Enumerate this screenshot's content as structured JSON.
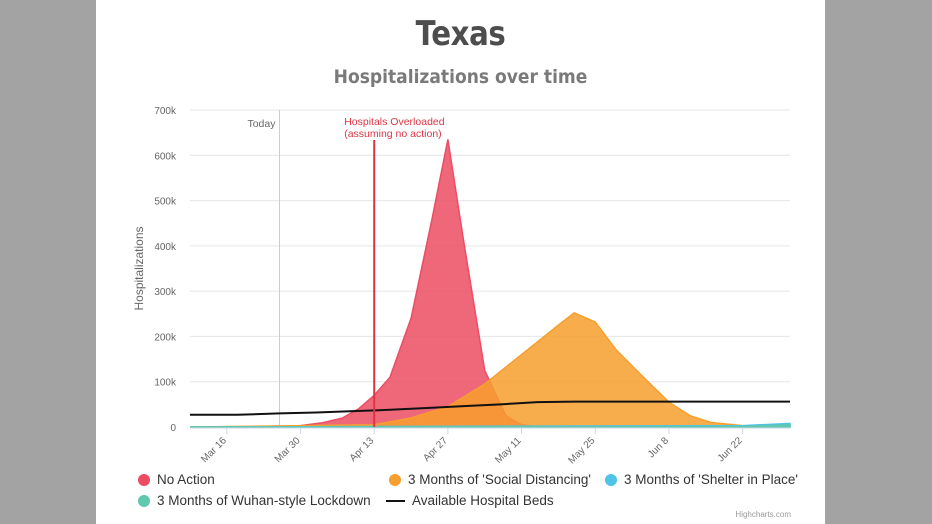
{
  "chart_data": {
    "type": "area",
    "title": "Texas",
    "subtitle": "Hospitalizations over time",
    "ylabel": "Hospitalizations",
    "ylim": [
      0,
      700000
    ],
    "yticks": [
      0,
      100000,
      200000,
      300000,
      400000,
      500000,
      600000,
      700000
    ],
    "ytick_labels": [
      "0",
      "100k",
      "200k",
      "300k",
      "400k",
      "500k",
      "600k",
      "700k"
    ],
    "xticks": [
      "2020-03-16",
      "2020-03-30",
      "2020-04-13",
      "2020-04-27",
      "2020-05-11",
      "2020-05-25",
      "2020-06-08",
      "2020-06-22"
    ],
    "xtick_labels": [
      "Mar 16",
      "Mar 30",
      "Apr 13",
      "Apr 27",
      "May 11",
      "May 25",
      "Jun 8",
      "Jun 22"
    ],
    "x_range": [
      "2020-03-09",
      "2020-07-01"
    ],
    "grid": true,
    "legend_position": "bottom",
    "plot_lines": [
      {
        "label": "Today",
        "x": "2020-03-26",
        "color": "#cccccc"
      },
      {
        "label": "Hospitals Overloaded\n(assuming no action)",
        "x": "2020-04-13",
        "color": "#dc3545"
      }
    ],
    "series": [
      {
        "name": "No Action",
        "color": "#ec4d63",
        "x": [
          "2020-03-09",
          "2020-03-26",
          "2020-03-30",
          "2020-04-03",
          "2020-04-07",
          "2020-04-10",
          "2020-04-13",
          "2020-04-16",
          "2020-04-20",
          "2020-04-24",
          "2020-04-27",
          "2020-04-30",
          "2020-05-04",
          "2020-05-08",
          "2020-05-11",
          "2020-05-14"
        ],
        "values": [
          0,
          1000,
          3000,
          9000,
          20000,
          40000,
          70000,
          110000,
          240000,
          460000,
          635000,
          410000,
          125000,
          25000,
          5000,
          0
        ]
      },
      {
        "name": "3 Months of 'Social Distancing'",
        "color": "#f79f2e",
        "x": [
          "2020-03-09",
          "2020-04-13",
          "2020-04-20",
          "2020-04-27",
          "2020-05-04",
          "2020-05-11",
          "2020-05-18",
          "2020-05-21",
          "2020-05-25",
          "2020-05-29",
          "2020-06-04",
          "2020-06-08",
          "2020-06-12",
          "2020-06-16",
          "2020-06-22",
          "2020-07-01"
        ],
        "values": [
          0,
          5000,
          20000,
          45000,
          95000,
          160000,
          225000,
          252000,
          232000,
          170000,
          100000,
          55000,
          25000,
          10000,
          3000,
          0
        ]
      },
      {
        "name": "3 Months of 'Shelter in Place'",
        "color": "#4fc3e8",
        "x": [
          "2020-03-09",
          "2020-05-11",
          "2020-06-22",
          "2020-07-01"
        ],
        "values": [
          0,
          2000,
          3000,
          8000
        ]
      },
      {
        "name": "3 Months of Wuhan-style Lockdown",
        "color": "#5fc8ae",
        "x": [
          "2020-03-09",
          "2020-06-22",
          "2020-07-01"
        ],
        "values": [
          0,
          1000,
          5000
        ]
      },
      {
        "name": "Available Hospital Beds",
        "color": "#111111",
        "kind": "line",
        "x": [
          "2020-03-09",
          "2020-03-18",
          "2020-03-26",
          "2020-04-02",
          "2020-04-09",
          "2020-04-16",
          "2020-04-23",
          "2020-04-30",
          "2020-05-07",
          "2020-05-14",
          "2020-05-21",
          "2020-06-22",
          "2020-07-01"
        ],
        "values": [
          27000,
          27000,
          30000,
          32000,
          35000,
          38000,
          42000,
          46000,
          50000,
          55000,
          56000,
          56000,
          56000
        ]
      }
    ]
  },
  "credits": "Highcharts.com"
}
